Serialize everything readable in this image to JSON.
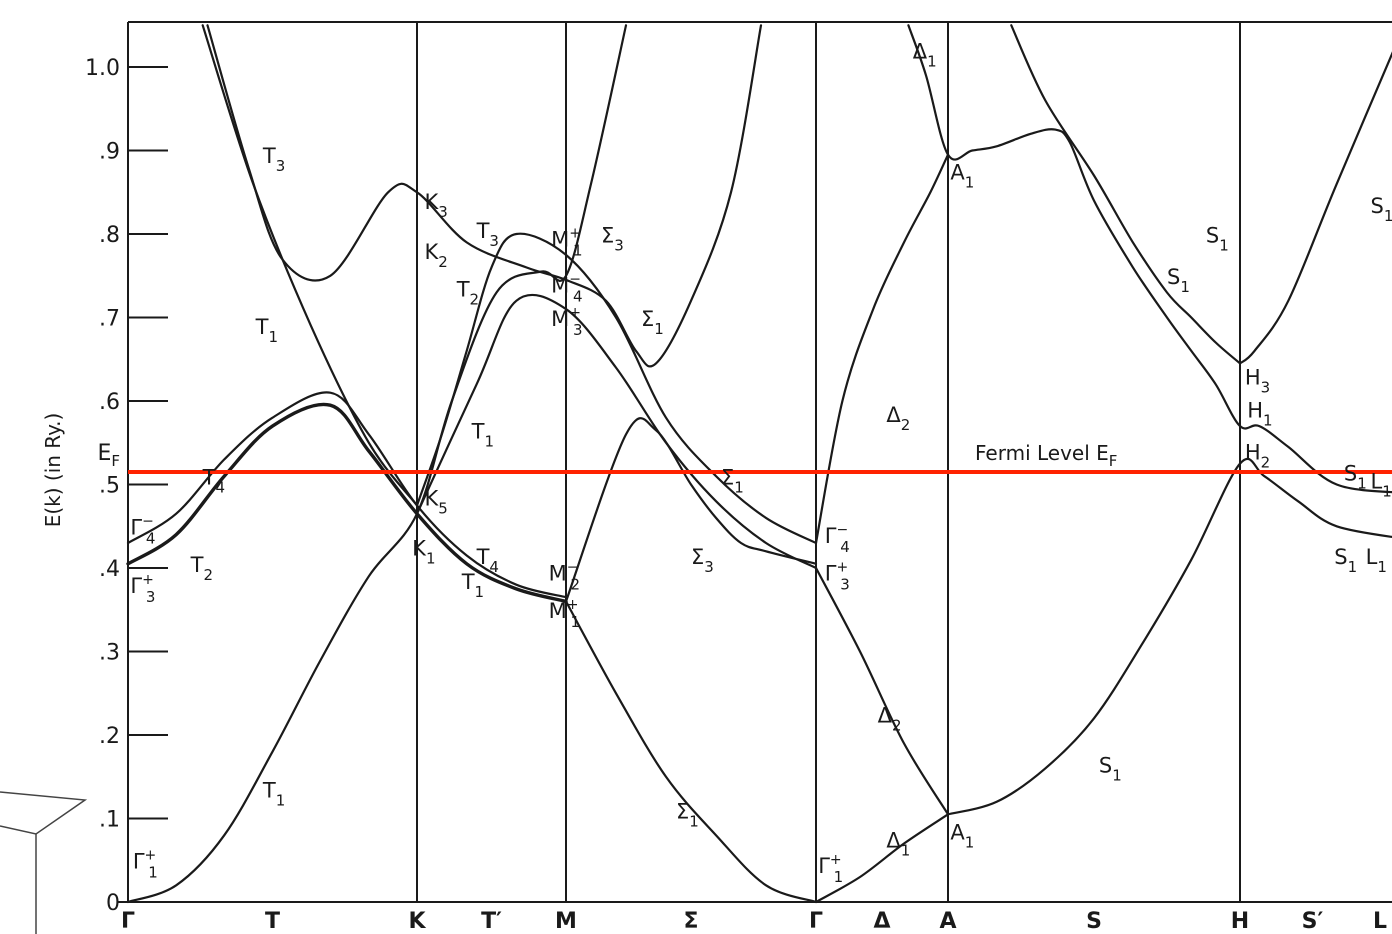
{
  "chart_data": {
    "type": "line",
    "title": "",
    "ylabel": "E(k) (in Ry.)",
    "ylim": [
      0,
      1.05
    ],
    "y_ticks": [
      {
        "v": 1.0,
        "label": "1.0"
      },
      {
        "v": 0.9,
        "label": ".9"
      },
      {
        "v": 0.8,
        "label": ".8"
      },
      {
        "v": 0.7,
        "label": ".7"
      },
      {
        "v": 0.6,
        "label": ".6"
      },
      {
        "v": 0.5,
        "label": ".5"
      },
      {
        "v": 0.4,
        "label": ".4"
      },
      {
        "v": 0.3,
        "label": ".3"
      },
      {
        "v": 0.2,
        "label": ".2"
      },
      {
        "v": 0.1,
        "label": ".1"
      },
      {
        "v": 0.0,
        "label": "0"
      }
    ],
    "high_symmetry_points": [
      {
        "label": "Γ",
        "k": 0,
        "line": false
      },
      {
        "label": "K",
        "k": 6,
        "line": true
      },
      {
        "label": "M",
        "k": 9,
        "line": true
      },
      {
        "label": "Γ",
        "k": 14,
        "line": true
      },
      {
        "label": "A",
        "k": 17,
        "line": true
      },
      {
        "label": "H",
        "k": 23,
        "line": true
      },
      {
        "label": "L",
        "k": 26,
        "line": false
      }
    ],
    "segment_labels": [
      {
        "label": "T",
        "k": 3
      },
      {
        "label": "T′",
        "k": 7.5
      },
      {
        "label": "Σ",
        "k": 11.5
      },
      {
        "label": "Δ",
        "k": 15.5
      },
      {
        "label": "S",
        "k": 20
      },
      {
        "label": "S′",
        "k": 24.5
      }
    ],
    "xlim": [
      0,
      26.4
    ],
    "fermi_level": {
      "energy": 0.515,
      "label": "Fermi Level E",
      "label_sub": "F",
      "axis_label": "E",
      "axis_label_sub": "F"
    },
    "bands": [
      {
        "points": [
          [
            1.65,
            1.05
          ],
          [
            2.5,
            0.88
          ],
          [
            3.2,
            0.77
          ],
          [
            4.2,
            0.75
          ],
          [
            5.4,
            0.85
          ],
          [
            6,
            0.85
          ],
          [
            7,
            0.79
          ],
          [
            8.2,
            0.76
          ],
          [
            9,
            0.745
          ],
          [
            9.8,
            0.72
          ],
          [
            10.4,
            0.66
          ],
          [
            10.8,
            0.645
          ],
          [
            11.5,
            0.72
          ],
          [
            12.3,
            0.85
          ],
          [
            12.9,
            1.05
          ]
        ]
      },
      {
        "points": [
          [
            1.55,
            1.05
          ],
          [
            2.6,
            0.86
          ],
          [
            3.8,
            0.69
          ],
          [
            5,
            0.55
          ],
          [
            6,
            0.475
          ]
        ]
      },
      {
        "points": [
          [
            0,
            0.405
          ],
          [
            1,
            0.44
          ],
          [
            2,
            0.51
          ],
          [
            3,
            0.57
          ],
          [
            4.2,
            0.595
          ],
          [
            5,
            0.54
          ],
          [
            6,
            0.465
          ],
          [
            7,
            0.405
          ],
          [
            8,
            0.375
          ],
          [
            9,
            0.36
          ]
        ],
        "heavy": true
      },
      {
        "points": [
          [
            0,
            0.43
          ],
          [
            1,
            0.465
          ],
          [
            2,
            0.53
          ],
          [
            3,
            0.58
          ],
          [
            4.2,
            0.61
          ],
          [
            5,
            0.56
          ],
          [
            6,
            0.475
          ],
          [
            7,
            0.415
          ],
          [
            8,
            0.38
          ],
          [
            9,
            0.365
          ]
        ]
      },
      {
        "points": [
          [
            0,
            0
          ],
          [
            1,
            0.02
          ],
          [
            2,
            0.08
          ],
          [
            3,
            0.18
          ],
          [
            4,
            0.29
          ],
          [
            5,
            0.39
          ],
          [
            6,
            0.465
          ],
          [
            6.7,
            0.6
          ],
          [
            7.6,
            0.73
          ],
          [
            8.5,
            0.755
          ],
          [
            9,
            0.75
          ],
          [
            9.5,
            0.86
          ],
          [
            10.2,
            1.05
          ]
        ]
      },
      {
        "points": [
          [
            6,
            0.475
          ],
          [
            6.5,
            0.56
          ],
          [
            7,
            0.66
          ],
          [
            7.5,
            0.76
          ],
          [
            8,
            0.8
          ],
          [
            9,
            0.775
          ],
          [
            10,
            0.7
          ],
          [
            11,
            0.58
          ],
          [
            12,
            0.51
          ],
          [
            13,
            0.46
          ],
          [
            14,
            0.43
          ]
        ]
      },
      {
        "points": [
          [
            6,
            0.465
          ],
          [
            7.2,
            0.62
          ],
          [
            8,
            0.72
          ],
          [
            9,
            0.71
          ],
          [
            10,
            0.64
          ],
          [
            11,
            0.55
          ],
          [
            12,
            0.48
          ],
          [
            13,
            0.43
          ],
          [
            14,
            0.4
          ]
        ]
      },
      {
        "points": [
          [
            9,
            0.36
          ],
          [
            10.2,
            0.56
          ],
          [
            10.8,
            0.565
          ],
          [
            11.5,
            0.5
          ],
          [
            12,
            0.46
          ],
          [
            12.5,
            0.43
          ],
          [
            13,
            0.42
          ],
          [
            14,
            0.405
          ]
        ]
      },
      {
        "points": [
          [
            9,
            0.36
          ],
          [
            10,
            0.25
          ],
          [
            11,
            0.15
          ],
          [
            12,
            0.08
          ],
          [
            13,
            0.02
          ],
          [
            14,
            0
          ]
        ]
      },
      {
        "points": [
          [
            14,
            0.43
          ],
          [
            14.6,
            0.6
          ],
          [
            15.3,
            0.71
          ],
          [
            16,
            0.79
          ],
          [
            16.6,
            0.85
          ],
          [
            17,
            0.895
          ]
        ]
      },
      {
        "points": [
          [
            14,
            0.4
          ],
          [
            15,
            0.3
          ],
          [
            16,
            0.19
          ],
          [
            17,
            0.105
          ]
        ]
      },
      {
        "points": [
          [
            14,
            0
          ],
          [
            15,
            0.03
          ],
          [
            16,
            0.07
          ],
          [
            17,
            0.105
          ]
        ]
      },
      {
        "points": [
          [
            16.1,
            1.05
          ],
          [
            16.5,
            0.99
          ],
          [
            17,
            0.895
          ],
          [
            17.5,
            0.9
          ],
          [
            18,
            0.905
          ],
          [
            18.7,
            0.92
          ],
          [
            19.2,
            0.925
          ],
          [
            19.5,
            0.91
          ],
          [
            20,
            0.84
          ],
          [
            20.8,
            0.76
          ],
          [
            21.5,
            0.7
          ],
          [
            22,
            0.66
          ],
          [
            22.5,
            0.62
          ],
          [
            23,
            0.57
          ],
          [
            23.4,
            0.57
          ],
          [
            24,
            0.545
          ],
          [
            25,
            0.5
          ],
          [
            26.4,
            0.49
          ]
        ]
      },
      {
        "points": [
          [
            17,
            0.105
          ],
          [
            18,
            0.12
          ],
          [
            19,
            0.16
          ],
          [
            20,
            0.22
          ],
          [
            21,
            0.31
          ],
          [
            22,
            0.41
          ],
          [
            23,
            0.525
          ],
          [
            23.5,
            0.51
          ],
          [
            24.2,
            0.48
          ],
          [
            25,
            0.45
          ],
          [
            26.4,
            0.435
          ]
        ]
      },
      {
        "points": [
          [
            18.3,
            1.05
          ],
          [
            19,
            0.96
          ],
          [
            20,
            0.87
          ],
          [
            20.8,
            0.79
          ],
          [
            21.5,
            0.73
          ],
          [
            22,
            0.7
          ],
          [
            22.5,
            0.67
          ],
          [
            23,
            0.645
          ]
        ]
      },
      {
        "points": [
          [
            23,
            0.645
          ],
          [
            23.3,
            0.66
          ],
          [
            24,
            0.72
          ],
          [
            25,
            0.86
          ],
          [
            26.4,
            1.05
          ]
        ]
      },
      {
        "points": [
          [
            22.95,
            0.645
          ],
          [
            22.95,
            0.645
          ]
        ]
      },
      {
        "points": [
          [
            23,
            0.57
          ],
          [
            23,
            0.57
          ]
        ]
      }
    ],
    "band_labels": [
      {
        "text": "Γ",
        "sub": "1",
        "sup": "+",
        "k": 0.1,
        "e": 0.04
      },
      {
        "text": "Γ",
        "sub": "4",
        "sup": "−",
        "k": 0.05,
        "e": 0.44
      },
      {
        "text": "Γ",
        "sub": "3",
        "sup": "+",
        "k": 0.05,
        "e": 0.37
      },
      {
        "text": "T",
        "sub": "1",
        "k": 2.8,
        "e": 0.125
      },
      {
        "text": "T",
        "sub": "2",
        "k": 1.3,
        "e": 0.395
      },
      {
        "text": "T",
        "sub": "4",
        "k": 1.55,
        "e": 0.5
      },
      {
        "text": "T",
        "sub": "3",
        "k": 2.8,
        "e": 0.885
      },
      {
        "text": "T",
        "sub": "1",
        "k": 2.65,
        "e": 0.68
      },
      {
        "text": "K",
        "sub": "3",
        "k": 6.15,
        "e": 0.83
      },
      {
        "text": "K",
        "sub": "2",
        "k": 6.15,
        "e": 0.77
      },
      {
        "text": "K",
        "sub": "5",
        "k": 6.15,
        "e": 0.475
      },
      {
        "text": "K",
        "sub": "1",
        "k": 5.9,
        "e": 0.415
      },
      {
        "text": "T",
        "sub": "3",
        "k": 7.2,
        "e": 0.795
      },
      {
        "text": "T",
        "sub": "2",
        "k": 6.8,
        "e": 0.725
      },
      {
        "text": "T",
        "sub": "1",
        "k": 7.1,
        "e": 0.555
      },
      {
        "text": "T",
        "sub": "4",
        "k": 7.2,
        "e": 0.405
      },
      {
        "text": "T",
        "sub": "1",
        "k": 6.9,
        "e": 0.375
      },
      {
        "text": "M",
        "sub": "1",
        "sup": "+",
        "k": 8.7,
        "e": 0.785
      },
      {
        "text": "M",
        "sub": "4",
        "sup": "−",
        "k": 8.7,
        "e": 0.73
      },
      {
        "text": "M",
        "sub": "3",
        "sup": "+",
        "k": 8.7,
        "e": 0.69
      },
      {
        "text": "M",
        "sub": "2",
        "sup": "−",
        "k": 8.65,
        "e": 0.385
      },
      {
        "text": "M",
        "sub": "1",
        "sup": "+",
        "k": 8.65,
        "e": 0.34
      },
      {
        "text": "Σ",
        "sub": "3",
        "k": 9.7,
        "e": 0.79
      },
      {
        "text": "Σ",
        "sub": "1",
        "k": 10.5,
        "e": 0.69
      },
      {
        "text": "Σ",
        "sub": "1",
        "k": 12.1,
        "e": 0.5
      },
      {
        "text": "Σ",
        "sub": "3",
        "k": 11.5,
        "e": 0.405
      },
      {
        "text": "Σ",
        "sub": "1",
        "k": 11.2,
        "e": 0.1
      },
      {
        "text": "Γ",
        "sub": "4",
        "sup": "−",
        "k": 14.2,
        "e": 0.43
      },
      {
        "text": "Γ",
        "sub": "3",
        "sup": "+",
        "k": 14.2,
        "e": 0.385
      },
      {
        "text": "Γ",
        "sub": "1",
        "sup": "+",
        "k": 14.05,
        "e": 0.035
      },
      {
        "text": "Δ",
        "sub": "1",
        "k": 16.2,
        "e": 1.01
      },
      {
        "text": "Δ",
        "sub": "2",
        "k": 15.6,
        "e": 0.575
      },
      {
        "text": "Δ",
        "sub": "2",
        "k": 15.4,
        "e": 0.215
      },
      {
        "text": "Δ",
        "sub": "1",
        "k": 15.6,
        "e": 0.065
      },
      {
        "text": "A",
        "sub": "1",
        "k": 17.05,
        "e": 0.865
      },
      {
        "text": "A",
        "sub": "1",
        "k": 17.05,
        "e": 0.075
      },
      {
        "text": "S",
        "sub": "1",
        "k": 20.1,
        "e": 0.155
      },
      {
        "text": "S",
        "sub": "1",
        "k": 21.5,
        "e": 0.74
      },
      {
        "text": "S",
        "sub": "1",
        "k": 22.3,
        "e": 0.79
      },
      {
        "text": "S",
        "sub": "1",
        "k": 25.7,
        "e": 0.825
      },
      {
        "text": "H",
        "sub": "3",
        "k": 23.1,
        "e": 0.62
      },
      {
        "text": "H",
        "sub": "1",
        "k": 23.15,
        "e": 0.58
      },
      {
        "text": "H",
        "sub": "2",
        "k": 23.1,
        "e": 0.53
      },
      {
        "text": "S",
        "sub": "1",
        "k": 25.15,
        "e": 0.505
      },
      {
        "text": "L",
        "sub": "1",
        "k": 25.7,
        "e": 0.495
      },
      {
        "text": "S",
        "sub": "1",
        "k": 24.95,
        "e": 0.405
      },
      {
        "text": "L",
        "sub": "1",
        "k": 25.6,
        "e": 0.405
      }
    ]
  }
}
